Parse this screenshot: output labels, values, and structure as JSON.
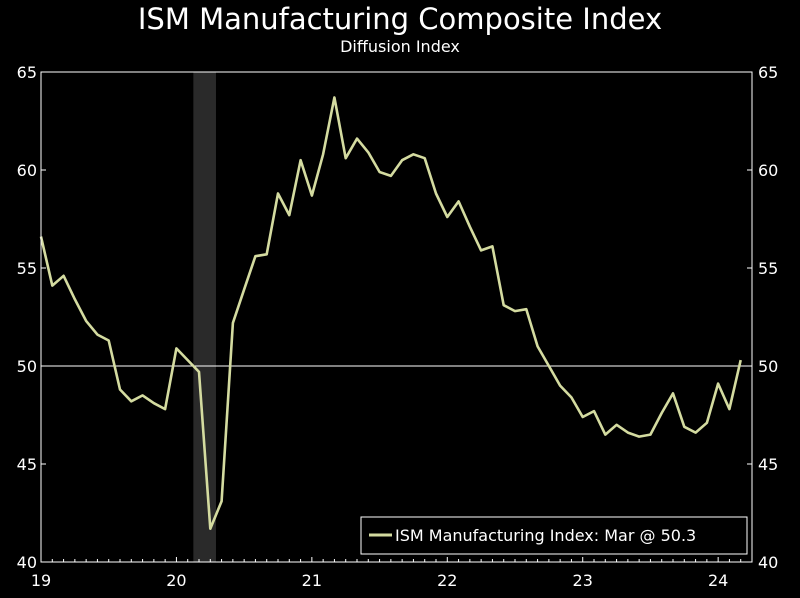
{
  "chart_data": {
    "type": "line",
    "title": "ISM Manufacturing Composite Index",
    "subtitle": "Diffusion Index",
    "xlabel": "",
    "ylabel": "",
    "ylim": [
      40,
      65
    ],
    "yticks": [
      40,
      45,
      50,
      55,
      60,
      65
    ],
    "xlim": [
      2019.0,
      2024.25
    ],
    "xticks": [
      {
        "value": 2019,
        "label": "19"
      },
      {
        "value": 2020,
        "label": "20"
      },
      {
        "value": 2021,
        "label": "21"
      },
      {
        "value": 2022,
        "label": "22"
      },
      {
        "value": 2023,
        "label": "23"
      },
      {
        "value": 2024,
        "label": "24"
      }
    ],
    "reference_line": 50,
    "recession_band": [
      2020.125,
      2020.292
    ],
    "legend_position": "bottom-right",
    "colors": {
      "series": "#d4dba0",
      "background": "#000000",
      "axis": "#ffffff",
      "band": "#2a2a2a"
    },
    "series": [
      {
        "name": "ISM Manufacturing Index: Mar @ 50.3",
        "x": [
          "2019-01",
          "2019-02",
          "2019-03",
          "2019-04",
          "2019-05",
          "2019-06",
          "2019-07",
          "2019-08",
          "2019-09",
          "2019-10",
          "2019-11",
          "2019-12",
          "2020-01",
          "2020-02",
          "2020-03",
          "2020-04",
          "2020-05",
          "2020-06",
          "2020-07",
          "2020-08",
          "2020-09",
          "2020-10",
          "2020-11",
          "2020-12",
          "2021-01",
          "2021-02",
          "2021-03",
          "2021-04",
          "2021-05",
          "2021-06",
          "2021-07",
          "2021-08",
          "2021-09",
          "2021-10",
          "2021-11",
          "2021-12",
          "2022-01",
          "2022-02",
          "2022-03",
          "2022-04",
          "2022-05",
          "2022-06",
          "2022-07",
          "2022-08",
          "2022-09",
          "2022-10",
          "2022-11",
          "2022-12",
          "2023-01",
          "2023-02",
          "2023-03",
          "2023-04",
          "2023-05",
          "2023-06",
          "2023-07",
          "2023-08",
          "2023-09",
          "2023-10",
          "2023-11",
          "2023-12",
          "2024-01",
          "2024-02",
          "2024-03"
        ],
        "values": [
          56.6,
          54.1,
          54.6,
          53.4,
          52.3,
          51.6,
          51.3,
          48.8,
          48.2,
          48.5,
          48.1,
          47.8,
          50.9,
          50.3,
          49.7,
          41.7,
          43.1,
          52.2,
          53.9,
          55.6,
          55.7,
          58.8,
          57.7,
          60.5,
          58.7,
          60.8,
          63.7,
          60.6,
          61.6,
          60.9,
          59.9,
          59.7,
          60.5,
          60.8,
          60.6,
          58.8,
          57.6,
          58.4,
          57.1,
          55.9,
          56.1,
          53.1,
          52.8,
          52.9,
          51.0,
          50.0,
          49.0,
          48.4,
          47.4,
          47.7,
          46.5,
          47.0,
          46.6,
          46.4,
          46.5,
          47.6,
          48.6,
          46.9,
          46.6,
          47.1,
          49.1,
          47.8,
          50.3
        ]
      }
    ]
  }
}
